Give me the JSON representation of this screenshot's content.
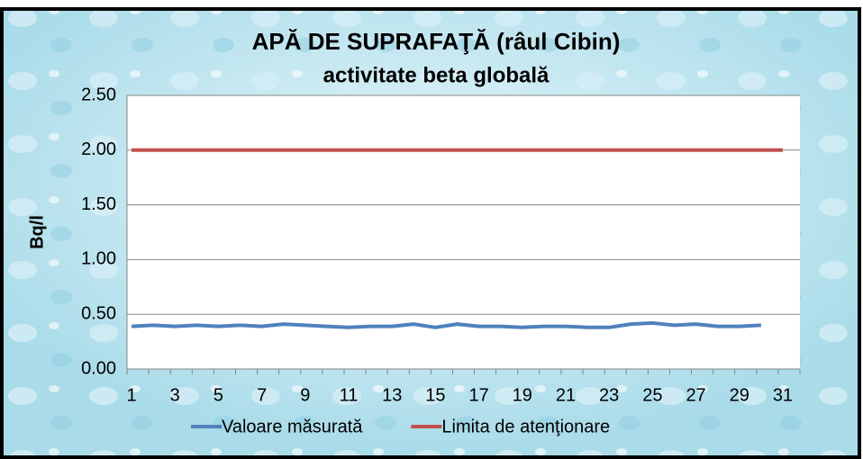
{
  "chart_data": {
    "type": "line",
    "title": "APĂ DE SUPRAFAŢĂ (râul Cibin)",
    "subtitle": "activitate beta globală",
    "y_label": "Bq/l",
    "categories": [
      "1",
      null,
      "3",
      null,
      "5",
      null,
      "7",
      null,
      "9",
      null,
      "11",
      null,
      "13",
      null,
      "15",
      null,
      "17",
      null,
      "19",
      null,
      "21",
      null,
      "23",
      null,
      "25",
      null,
      "27",
      null,
      "29",
      null,
      "31"
    ],
    "series": [
      {
        "name": "Valoare măsurată",
        "color": "#4f81bd",
        "values": [
          0.39,
          0.4,
          0.39,
          0.4,
          0.39,
          0.4,
          0.39,
          0.41,
          0.4,
          0.39,
          0.38,
          0.39,
          0.39,
          0.41,
          0.38,
          0.41,
          0.39,
          0.39,
          0.38,
          0.39,
          0.39,
          0.38,
          0.38,
          0.41,
          0.42,
          0.4,
          0.41,
          0.39,
          0.39,
          0.4,
          null
        ]
      },
      {
        "name": "Limita de atenţionare",
        "color": "#c0504d",
        "values": [
          2,
          2,
          2,
          2,
          2,
          2,
          2,
          2,
          2,
          2,
          2,
          2,
          2,
          2,
          2,
          2,
          2,
          2,
          2,
          2,
          2,
          2,
          2,
          2,
          2,
          2,
          2,
          2,
          2,
          2,
          2
        ]
      }
    ],
    "ylim": [
      0,
      2.5
    ],
    "yticks": [
      {
        "value": 0,
        "label": "0.00"
      },
      {
        "value": 0.5,
        "label": "0.50"
      },
      {
        "value": 1,
        "label": "1.00"
      },
      {
        "value": 1.5,
        "label": "1.50"
      },
      {
        "value": 2,
        "label": "2.00"
      },
      {
        "value": 2.5,
        "label": "2.50"
      }
    ],
    "grid": true,
    "legend": "bottom"
  }
}
